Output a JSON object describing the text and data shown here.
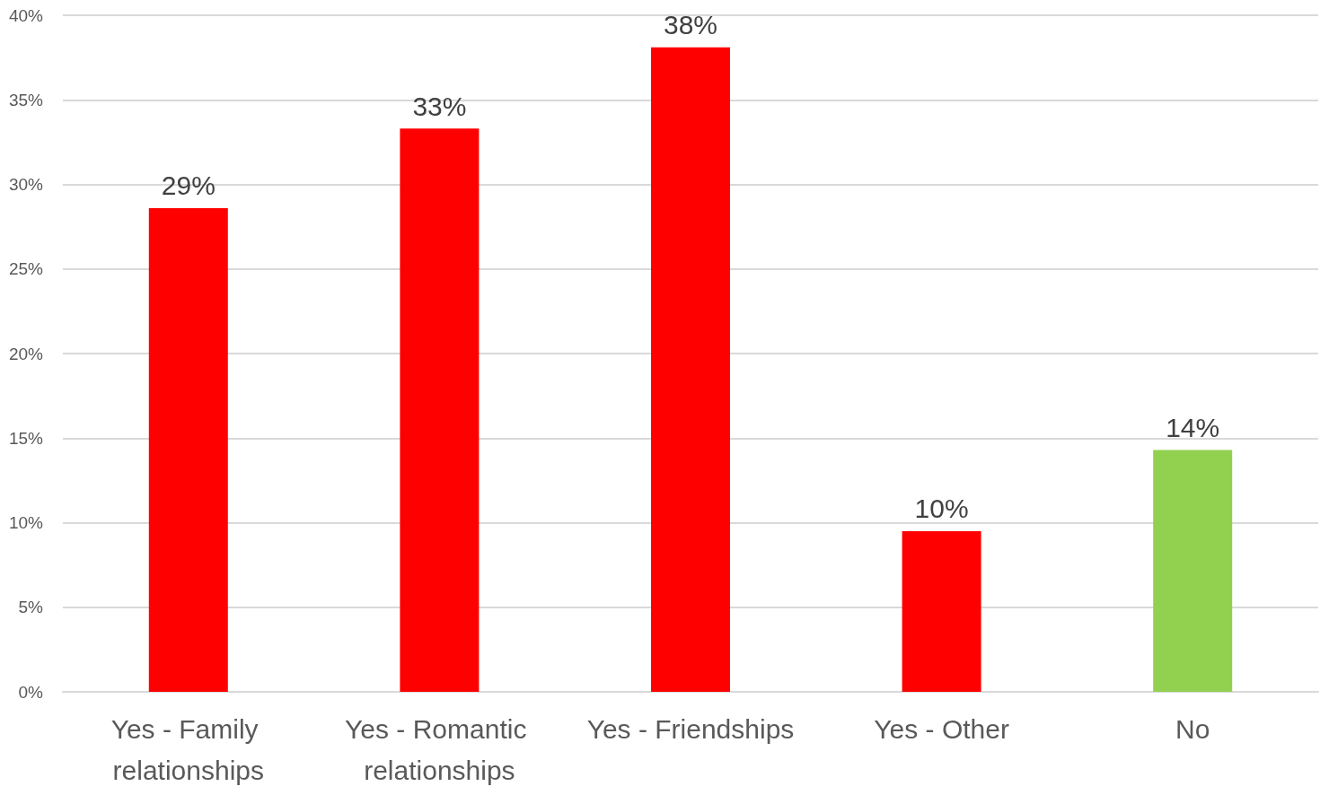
{
  "chart_data": {
    "type": "bar",
    "categories": [
      "Yes - Family relationships",
      "Yes - Romantic relationships",
      "Yes - Friendships",
      "Yes - Other",
      "No"
    ],
    "values": [
      28.6,
      33.3,
      38.1,
      9.5,
      14.3
    ],
    "colors": [
      "#ff0000",
      "#ff0000",
      "#ff0000",
      "#ff0000",
      "#92d050"
    ],
    "value_labels": [
      "29%",
      "33%",
      "38%",
      "10%",
      "14%"
    ],
    "ylim": [
      0,
      40
    ],
    "yticks": [
      {
        "value": 0,
        "label": "0%"
      },
      {
        "value": 5,
        "label": "5%"
      },
      {
        "value": 10,
        "label": "10%"
      },
      {
        "value": 15,
        "label": "15%"
      },
      {
        "value": 20,
        "label": "20%"
      },
      {
        "value": 25,
        "label": "25%"
      },
      {
        "value": 30,
        "label": "30%"
      },
      {
        "value": 35,
        "label": "35%"
      },
      {
        "value": 40,
        "label": "40%"
      }
    ],
    "grid": "y"
  }
}
